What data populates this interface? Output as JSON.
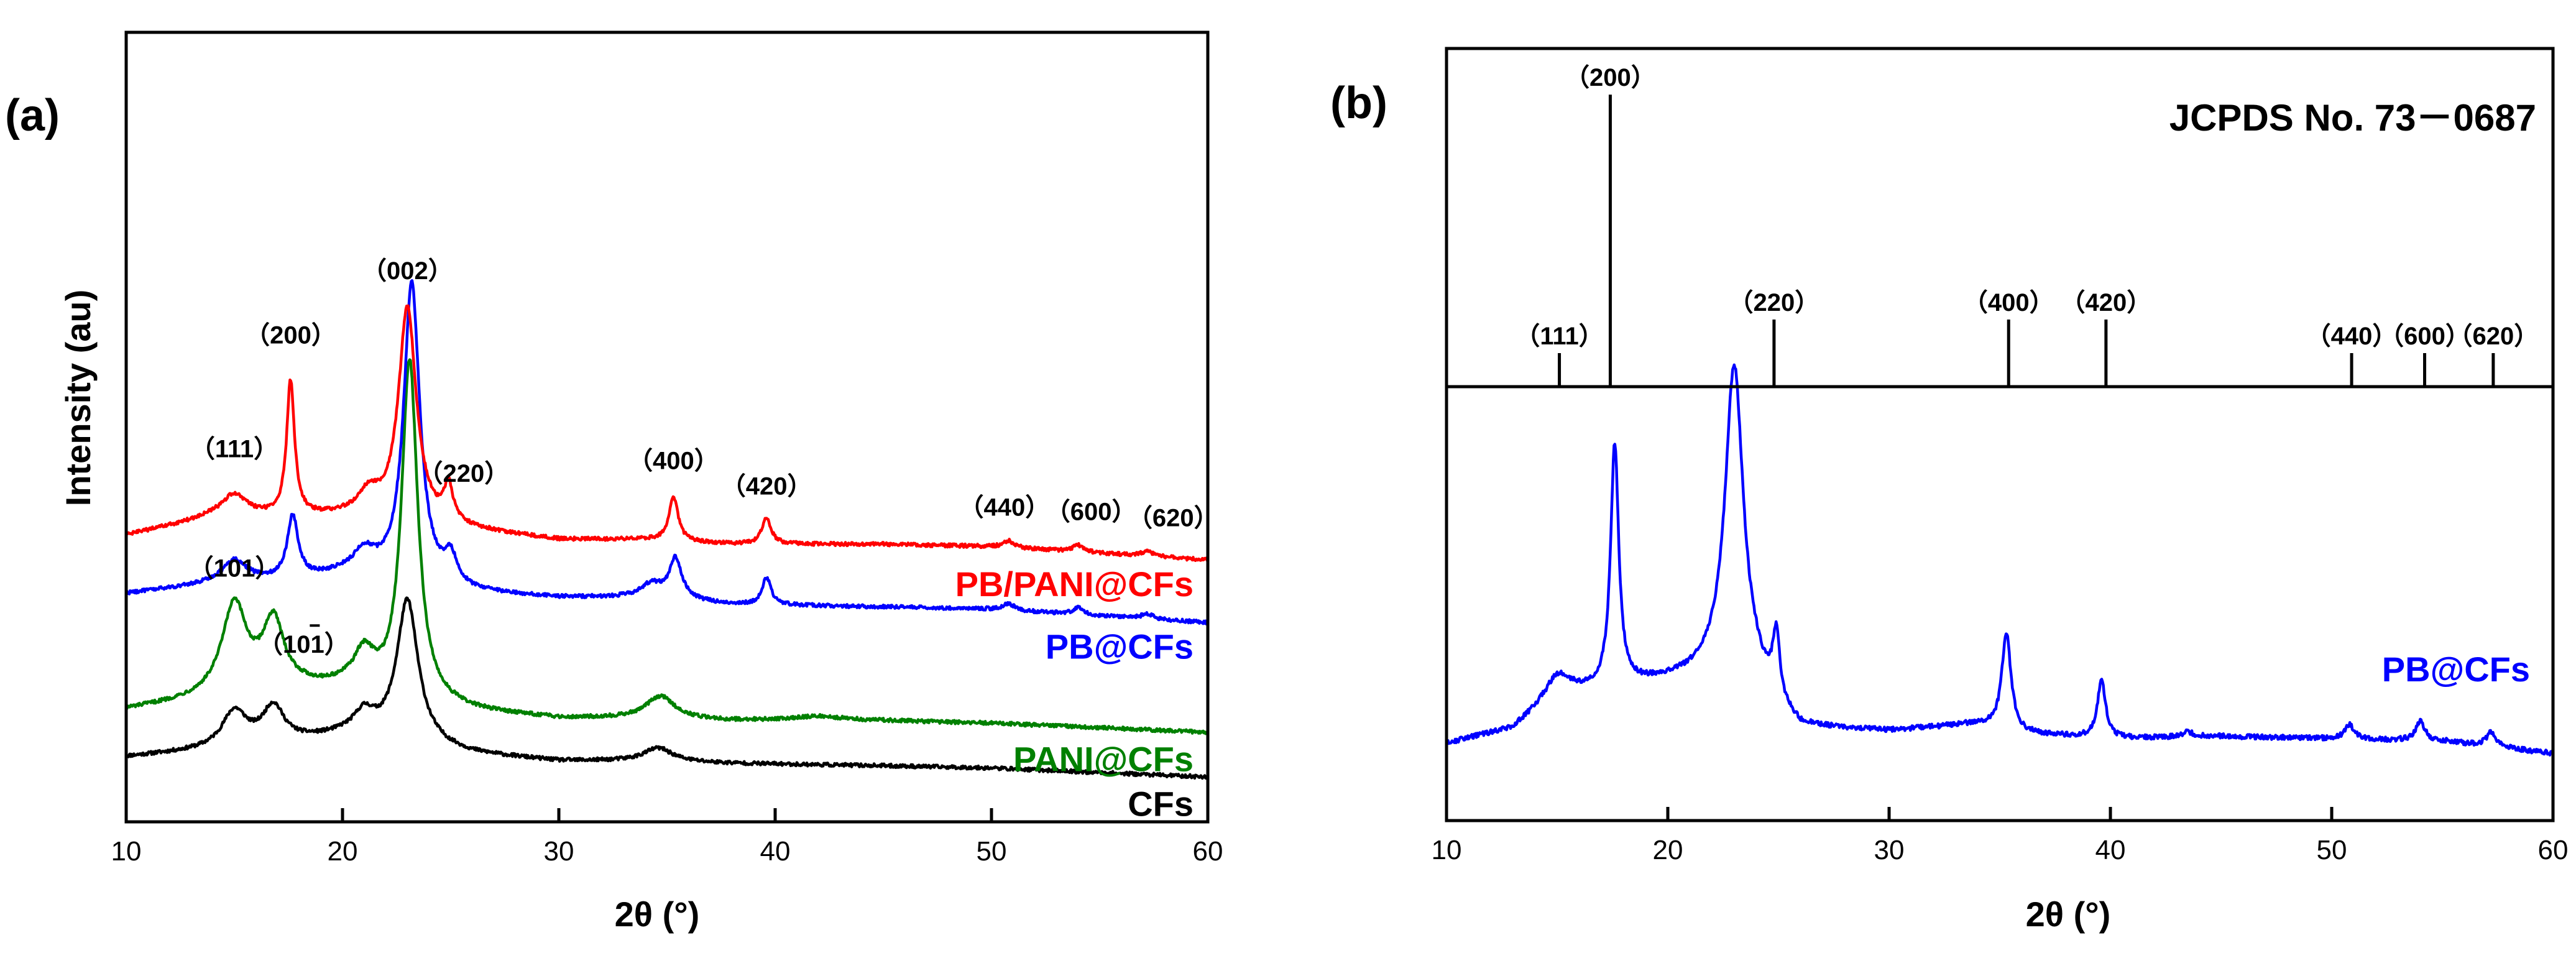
{
  "chart_data": [
    {
      "type": "line",
      "panel_label": "(a)",
      "xlabel": "2θ (°)",
      "ylabel": "Intensity (au)",
      "xlim": [
        10,
        60
      ],
      "xticks": [
        "10",
        "20",
        "30",
        "40",
        "50",
        "60"
      ],
      "legend_placement": "inline-right",
      "series": [
        {
          "name": "CFs",
          "color": "#000000",
          "offset": 0,
          "baseline": [
            [
              10,
              0.045
            ],
            [
              14,
              0.06
            ],
            [
              18,
              0.08
            ],
            [
              20,
              0.09
            ],
            [
              22,
              0.08
            ],
            [
              26,
              0.05
            ],
            [
              30,
              0.035
            ],
            [
              34,
              0.035
            ],
            [
              38,
              0.03
            ],
            [
              45,
              0.025
            ],
            [
              50,
              0.02
            ],
            [
              60,
              0.0
            ]
          ],
          "peaks": [
            [
              15.0,
              0.08,
              0.7
            ],
            [
              16.8,
              0.08,
              0.6
            ],
            [
              21.0,
              0.05,
              0.6
            ],
            [
              23.0,
              0.32,
              0.6
            ],
            [
              34.6,
              0.03,
              0.8
            ]
          ]
        },
        {
          "name": "PANI@CFs",
          "color": "#008000",
          "offset": 0.095,
          "baseline": [
            [
              10,
              0.055
            ],
            [
              14,
              0.08
            ],
            [
              18,
              0.1
            ],
            [
              20,
              0.1
            ],
            [
              22,
              0.08
            ],
            [
              26,
              0.05
            ],
            [
              30,
              0.035
            ],
            [
              34,
              0.035
            ],
            [
              38,
              0.03
            ],
            [
              45,
              0.03
            ],
            [
              50,
              0.025
            ],
            [
              60,
              0.005
            ]
          ],
          "peaks": [
            [
              15.0,
              0.2,
              0.7
            ],
            [
              16.8,
              0.15,
              0.6
            ],
            [
              21.0,
              0.08,
              0.6
            ],
            [
              23.1,
              0.76,
              0.45
            ],
            [
              34.7,
              0.05,
              0.8
            ],
            [
              42.0,
              0.01,
              1.5
            ]
          ]
        },
        {
          "name": "PB@CFs",
          "color": "#0000ff",
          "offset": 0.34,
          "baseline": [
            [
              10,
              0.07
            ],
            [
              14,
              0.09
            ],
            [
              18,
              0.1
            ],
            [
              20,
              0.11
            ],
            [
              22,
              0.1
            ],
            [
              26,
              0.07
            ],
            [
              30,
              0.06
            ],
            [
              34,
              0.06
            ],
            [
              38,
              0.045
            ],
            [
              45,
              0.04
            ],
            [
              50,
              0.035
            ],
            [
              60,
              0.005
            ]
          ],
          "peaks": [
            [
              15.0,
              0.05,
              0.7
            ],
            [
              17.7,
              0.14,
              0.3
            ],
            [
              21.0,
              0.05,
              0.6
            ],
            [
              23.2,
              0.67,
              0.45
            ],
            [
              25.0,
              0.06,
              0.35
            ],
            [
              34.3,
              0.03,
              0.6
            ],
            [
              35.4,
              0.09,
              0.35
            ],
            [
              39.6,
              0.06,
              0.25
            ],
            [
              50.8,
              0.015,
              0.3
            ],
            [
              54.0,
              0.015,
              0.3
            ],
            [
              57.2,
              0.012,
              0.3
            ]
          ]
        },
        {
          "name": "PB/PANI@CFs",
          "color": "#ff0000",
          "offset": 0.48,
          "baseline": [
            [
              10,
              0.06
            ],
            [
              14,
              0.1
            ],
            [
              18,
              0.1
            ],
            [
              20,
              0.1
            ],
            [
              22,
              0.09
            ],
            [
              26,
              0.07
            ],
            [
              30,
              0.05
            ],
            [
              34,
              0.05
            ],
            [
              38,
              0.04
            ],
            [
              45,
              0.04
            ],
            [
              50,
              0.035
            ],
            [
              60,
              0.005
            ]
          ],
          "peaks": [
            [
              15.0,
              0.05,
              0.7
            ],
            [
              17.6,
              0.3,
              0.22
            ],
            [
              21.2,
              0.05,
              0.6
            ],
            [
              23.0,
              0.48,
              0.5
            ],
            [
              24.9,
              0.08,
              0.25
            ],
            [
              35.3,
              0.1,
              0.25
            ],
            [
              39.6,
              0.06,
              0.25
            ],
            [
              50.8,
              0.015,
              0.3
            ],
            [
              54.0,
              0.015,
              0.3
            ],
            [
              57.2,
              0.012,
              0.3
            ]
          ]
        }
      ],
      "series_labels": [
        {
          "name": "PB/PANI@CFs",
          "color": "#ff0000"
        },
        {
          "name": "PB@CFs",
          "color": "#0000ff"
        },
        {
          "name": "PANI@CFs",
          "color": "#008000"
        },
        {
          "name": "CFs",
          "color": "#000000"
        }
      ],
      "peak_labels": [
        {
          "text": "（111）",
          "x": 15.0,
          "series": "PB/PANI@CFs",
          "rise": 0.08
        },
        {
          "text": "（200）",
          "x": 17.6,
          "series": "PB/PANI@CFs",
          "rise": 0.08
        },
        {
          "text": "（002）",
          "x": 23.0,
          "series": "PB/PANI@CFs",
          "rise": 0.06
        },
        {
          "text": "（220）",
          "x": 25.6,
          "series": "PB/PANI@CFs",
          "rise": 0.08
        },
        {
          "text": "（400）",
          "x": 35.3,
          "series": "PB/PANI@CFs",
          "rise": 0.06
        },
        {
          "text": "（420）",
          "x": 39.6,
          "series": "PB/PANI@CFs",
          "rise": 0.05
        },
        {
          "text": "（440）",
          "x": 50.6,
          "series": "PB/PANI@CFs",
          "rise": 0.06
        },
        {
          "text": "（600）",
          "x": 54.6,
          "series": "PB/PANI@CFs",
          "rise": 0.07
        },
        {
          "text": "（620）",
          "x": 58.4,
          "series": "PB/PANI@CFs",
          "rise": 0.07
        },
        {
          "text": "（101）",
          "x": 15.0,
          "series": "PANI@CFs",
          "rise": 0.05
        },
        {
          "text": "（101）",
          "x": 18.2,
          "series": "PANI@CFs",
          "rise": 0.04,
          "bar": true
        }
      ]
    },
    {
      "type": "line",
      "panel_label": "(b)",
      "xlabel": "2θ (°)",
      "xlim": [
        10,
        60
      ],
      "xticks": [
        "10",
        "20",
        "30",
        "40",
        "50",
        "60"
      ],
      "reference": {
        "title": "JCPDS No. 73－0687",
        "lines": [
          {
            "hkl": "（111）",
            "x": 15.1,
            "h": 0.1
          },
          {
            "hkl": "（200）",
            "x": 17.4,
            "h": 0.87
          },
          {
            "hkl": "（220）",
            "x": 24.8,
            "h": 0.2
          },
          {
            "hkl": "（400）",
            "x": 35.4,
            "h": 0.2
          },
          {
            "hkl": "（420）",
            "x": 39.8,
            "h": 0.2
          },
          {
            "hkl": "（440）",
            "x": 50.9,
            "h": 0.1
          },
          {
            "hkl": "（600）",
            "x": 54.2,
            "h": 0.1
          },
          {
            "hkl": "（620）",
            "x": 57.3,
            "h": 0.1
          }
        ]
      },
      "series": [
        {
          "name": "PB@CFs",
          "color": "#0000ff",
          "baseline": [
            [
              10,
              0.02
            ],
            [
              13,
              0.05
            ],
            [
              15,
              0.12
            ],
            [
              17,
              0.13
            ],
            [
              18.5,
              0.14
            ],
            [
              20,
              0.15
            ],
            [
              22,
              0.16
            ],
            [
              24,
              0.14
            ],
            [
              25,
              0.08
            ],
            [
              26,
              0.05
            ],
            [
              30,
              0.045
            ],
            [
              34,
              0.06
            ],
            [
              36,
              0.04
            ],
            [
              40,
              0.03
            ],
            [
              45,
              0.035
            ],
            [
              50,
              0.03
            ],
            [
              55,
              0.025
            ],
            [
              60,
              0.0
            ]
          ],
          "peaks": [
            [
              15.0,
              0.04,
              0.7
            ],
            [
              17.6,
              0.5,
              0.22
            ],
            [
              23.0,
              0.65,
              0.5
            ],
            [
              24.9,
              0.14,
              0.2
            ],
            [
              35.3,
              0.2,
              0.25
            ],
            [
              39.6,
              0.12,
              0.22
            ],
            [
              43.5,
              0.01,
              0.3
            ],
            [
              50.8,
              0.03,
              0.25
            ],
            [
              54.0,
              0.04,
              0.25
            ],
            [
              57.2,
              0.03,
              0.25
            ]
          ]
        }
      ]
    }
  ]
}
